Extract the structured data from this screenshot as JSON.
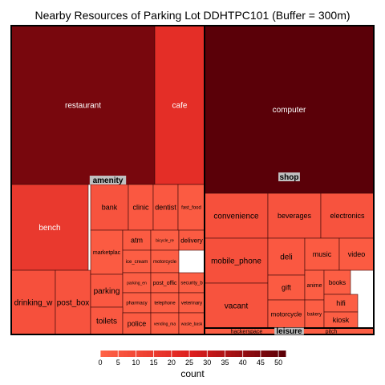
{
  "chart_data": {
    "type": "treemap",
    "title": "Nearby Resources of Parking Lot DDHTPC101 (Buffer = 300m)",
    "legend": {
      "title": "count",
      "ticks": [
        0,
        5,
        10,
        15,
        20,
        25,
        30,
        35,
        40,
        45,
        50
      ],
      "range": [
        0,
        52
      ],
      "low_color": "#ff6347",
      "mid_color": "#dc1e1e",
      "high_color": "#5a0008",
      "position": "bottom"
    },
    "groups": [
      {
        "name": "amenity",
        "items": [
          {
            "label": "restaurant",
            "value": 46
          },
          {
            "label": "cafe",
            "value": 20
          },
          {
            "label": "bench",
            "value": 16
          },
          {
            "label": "drinking_w",
            "value": 7
          },
          {
            "label": "post_box",
            "value": 6
          },
          {
            "label": "bank",
            "value": 6
          },
          {
            "label": "clinic",
            "value": 4
          },
          {
            "label": "dentist",
            "value": 4
          },
          {
            "label": "fast_food",
            "value": 3
          },
          {
            "label": "marketplac",
            "value": 3
          },
          {
            "label": "atm",
            "value": 3
          },
          {
            "label": "bicycle_re",
            "value": 2
          },
          {
            "label": "delivery",
            "value": 3
          },
          {
            "label": "ice_cream",
            "value": 2
          },
          {
            "label": "motorcycle",
            "value": 2
          },
          {
            "label": "parking",
            "value": 4
          },
          {
            "label": "parking_en",
            "value": 2
          },
          {
            "label": "post_offic",
            "value": 2
          },
          {
            "label": "security_b",
            "value": 2
          },
          {
            "label": "pharmacy",
            "value": 2
          },
          {
            "label": "telephone",
            "value": 2
          },
          {
            "label": "veterinary",
            "value": 2
          },
          {
            "label": "toilets",
            "value": 4
          },
          {
            "label": "police",
            "value": 3
          },
          {
            "label": "vending_ma",
            "value": 2
          },
          {
            "label": "waste_bask",
            "value": 2
          }
        ]
      },
      {
        "name": "shop",
        "items": [
          {
            "label": "computer",
            "value": 52
          },
          {
            "label": "convenience",
            "value": 7
          },
          {
            "label": "beverages",
            "value": 6
          },
          {
            "label": "electronics",
            "value": 6
          },
          {
            "label": "mobile_phone",
            "value": 7
          },
          {
            "label": "deli",
            "value": 4
          },
          {
            "label": "music",
            "value": 3
          },
          {
            "label": "video",
            "value": 3
          },
          {
            "label": "vacant",
            "value": 6
          },
          {
            "label": "gift",
            "value": 3
          },
          {
            "label": "anime",
            "value": 2
          },
          {
            "label": "books",
            "value": 2
          },
          {
            "label": "motorcycle",
            "value": 3
          },
          {
            "label": "bakery",
            "value": 2
          },
          {
            "label": "hifi",
            "value": 2
          },
          {
            "label": "kiosk",
            "value": 2
          }
        ]
      },
      {
        "name": "leisure",
        "items": [
          {
            "label": "hackerspace",
            "value": 2
          },
          {
            "label": "pitch",
            "value": 2
          }
        ]
      }
    ]
  }
}
